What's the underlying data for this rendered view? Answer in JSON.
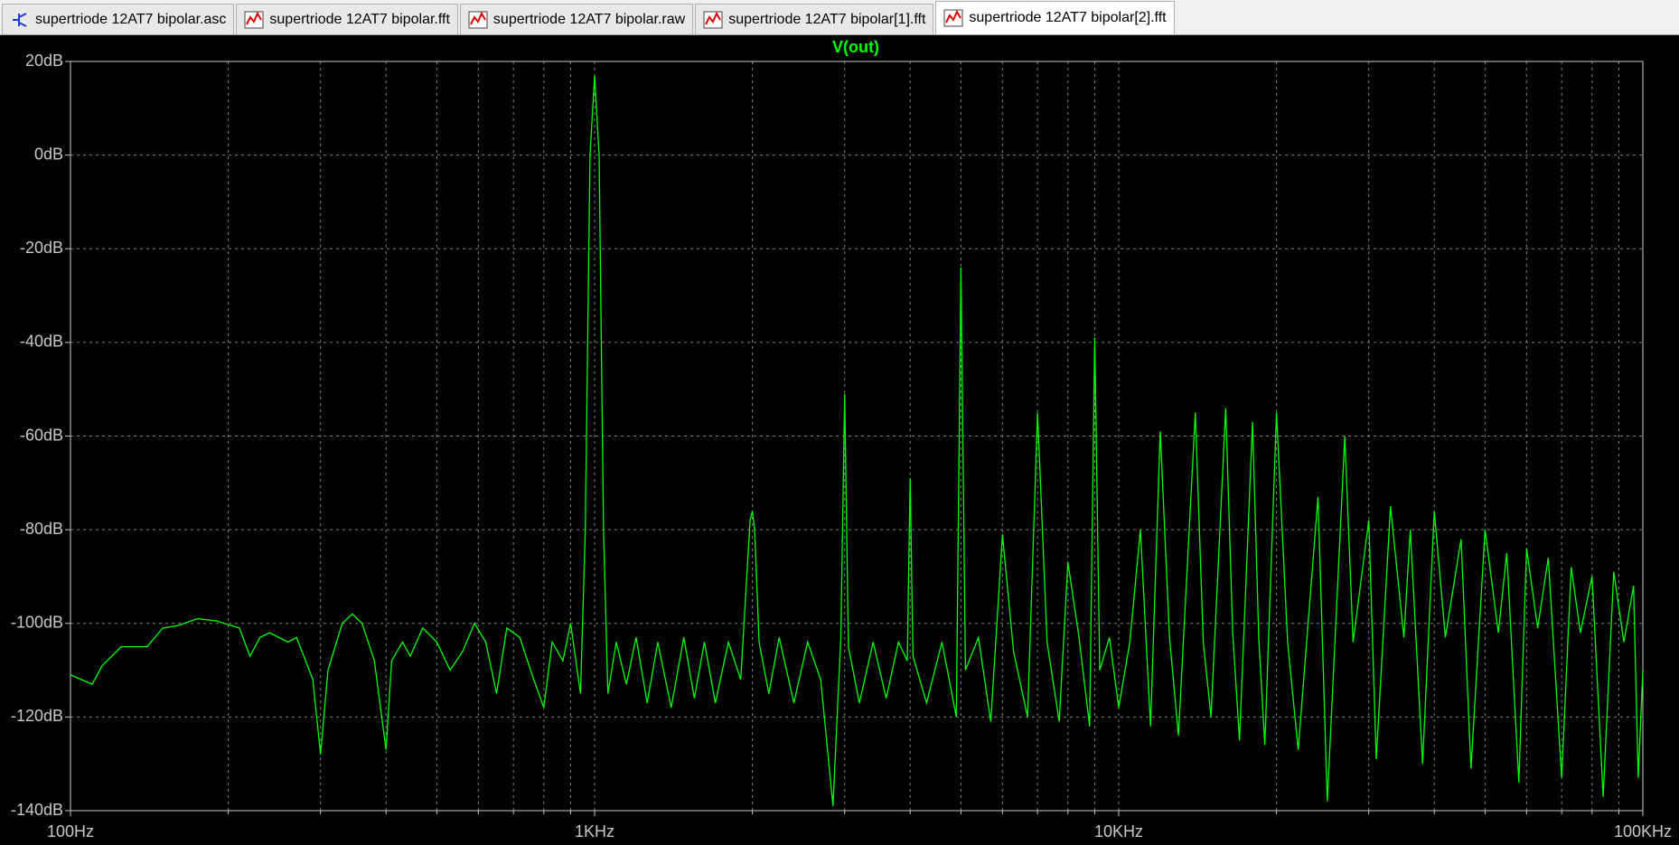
{
  "tabs": [
    "supertriode 12AT7 bipolar.asc",
    "supertriode 12AT7 bipolar.fft",
    "supertriode 12AT7 bipolar.raw",
    "supertriode 12AT7 bipolar[1].fft",
    "supertriode 12AT7 bipolar[2].fft"
  ],
  "chart_data": {
    "type": "line",
    "title": "V(out)",
    "xscale": "log",
    "grid": true,
    "xlim": [
      100,
      100000
    ],
    "xticks": [
      {
        "value": 100,
        "label": "100Hz"
      },
      {
        "value": 1000,
        "label": "1KHz"
      },
      {
        "value": 10000,
        "label": "10KHz"
      },
      {
        "value": 100000,
        "label": "100KHz"
      }
    ],
    "xminor_ticks": [
      200,
      300,
      400,
      500,
      600,
      700,
      800,
      900,
      2000,
      3000,
      4000,
      5000,
      6000,
      7000,
      8000,
      9000,
      20000,
      30000,
      40000,
      50000,
      60000,
      70000,
      80000,
      90000
    ],
    "ylim": [
      -140,
      20
    ],
    "yticks": [
      {
        "value": 20,
        "label": "20dB"
      },
      {
        "value": 0,
        "label": "0dB"
      },
      {
        "value": -20,
        "label": "-20dB"
      },
      {
        "value": -40,
        "label": "-40dB"
      },
      {
        "value": -60,
        "label": "-60dB"
      },
      {
        "value": -80,
        "label": "-80dB"
      },
      {
        "value": -100,
        "label": "-100dB"
      },
      {
        "value": -120,
        "label": "-120dB"
      },
      {
        "value": -140,
        "label": "-140dB"
      }
    ],
    "series": [
      {
        "name": "V(out)",
        "color": "#00ff00",
        "x": [
          100,
          110,
          115,
          125,
          140,
          150,
          160,
          175,
          190,
          210,
          220,
          230,
          240,
          260,
          270,
          290,
          300,
          310,
          330,
          345,
          360,
          380,
          400,
          410,
          430,
          445,
          470,
          500,
          530,
          560,
          590,
          620,
          650,
          680,
          720,
          760,
          800,
          830,
          870,
          900,
          940,
          960,
          980,
          1000,
          1020,
          1040,
          1060,
          1100,
          1150,
          1200,
          1260,
          1320,
          1400,
          1480,
          1550,
          1620,
          1700,
          1800,
          1900,
          1980,
          2000,
          2020,
          2060,
          2150,
          2250,
          2400,
          2550,
          2700,
          2850,
          2950,
          3000,
          3050,
          3200,
          3400,
          3600,
          3800,
          3950,
          4000,
          4050,
          4300,
          4600,
          4900,
          5000,
          5100,
          5400,
          5700,
          6000,
          6300,
          6700,
          7000,
          7300,
          7700,
          8000,
          8400,
          8800,
          9000,
          9200,
          9600,
          10000,
          10500,
          11000,
          11500,
          12000,
          12500,
          13000,
          14000,
          14500,
          15000,
          16000,
          16500,
          17000,
          18000,
          18500,
          19000,
          20000,
          21000,
          22000,
          24000,
          25000,
          27000,
          28000,
          30000,
          31000,
          33000,
          35000,
          36000,
          38000,
          40000,
          42000,
          45000,
          47000,
          50000,
          53000,
          55000,
          58000,
          60000,
          63000,
          66000,
          70000,
          73000,
          76000,
          80000,
          84000,
          88000,
          92000,
          96000,
          98000,
          100000
        ],
        "values": [
          -111,
          -113,
          -109,
          -105,
          -105,
          -101,
          -100.5,
          -99,
          -99.5,
          -101,
          -107,
          -103,
          -102,
          -104,
          -103,
          -112,
          -128,
          -110,
          -100,
          -98,
          -100,
          -108,
          -127,
          -108,
          -104,
          -107,
          -101,
          -104,
          -110,
          -106,
          -100,
          -104,
          -115,
          -101,
          -103,
          -111,
          -118,
          -104,
          -108,
          -100,
          -115,
          -80,
          0,
          17,
          0,
          -80,
          -115,
          -104,
          -113,
          -103,
          -117,
          -104,
          -118,
          -103,
          -116,
          -104,
          -117,
          -104,
          -112,
          -78,
          -76,
          -80,
          -104,
          -115,
          -103,
          -117,
          -104,
          -112,
          -139,
          -103,
          -51,
          -105,
          -117,
          -104,
          -116,
          -104,
          -108,
          -69,
          -107,
          -117,
          -104,
          -120,
          -24,
          -110,
          -103,
          -121,
          -81,
          -106,
          -120,
          -55,
          -104,
          -121,
          -87,
          -103,
          -122,
          -39,
          -110,
          -103,
          -118,
          -104,
          -80,
          -122,
          -59,
          -103,
          -124,
          -55,
          -104,
          -120,
          -54,
          -102,
          -125,
          -57,
          -103,
          -126,
          -55,
          -104,
          -127,
          -73,
          -138,
          -60,
          -104,
          -78,
          -129,
          -75,
          -103,
          -80,
          -130,
          -76,
          -103,
          -82,
          -131,
          -80,
          -102,
          -85,
          -134,
          -84,
          -101,
          -86,
          -133,
          -88,
          -102,
          -90,
          -137,
          -89,
          -104,
          -92,
          -133,
          -110
        ]
      }
    ]
  }
}
